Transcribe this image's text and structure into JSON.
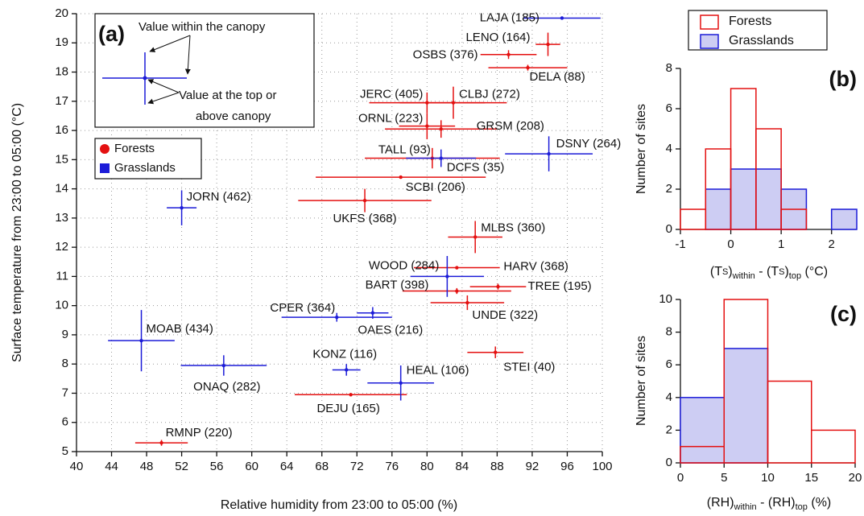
{
  "chart_data": [
    {
      "type": "scatter",
      "title": "(a)",
      "xlabel": "Relative humidity from 23:00 to 05:00 (%)",
      "ylabel": "Surface temperature from 23:00 to 05:00 (°C)",
      "annotations": [
        "Value within the canopy",
        "Value at the top or",
        "above canopy"
      ],
      "xlim": [
        40,
        100
      ],
      "xticks": [
        40,
        44,
        48,
        52,
        56,
        60,
        64,
        68,
        72,
        76,
        80,
        84,
        88,
        92,
        96,
        100
      ],
      "ylim": [
        5,
        20
      ],
      "yticks": [
        5,
        6,
        7,
        8,
        9,
        10,
        11,
        12,
        13,
        14,
        15,
        16,
        17,
        18,
        19,
        20
      ],
      "grid": true,
      "series": [
        {
          "name": "Forests",
          "color": "#e41010",
          "marker": "circle",
          "labels": [
            "LENO (164)",
            "OSBS (376)",
            "DELA (88)",
            "JERC (405)",
            "CLBJ (272)",
            "ORNL (223)",
            "GRSM (208)",
            "TALL (93)",
            "SCBI (206)",
            "UKFS (368)",
            "MLBS (360)",
            "HARV (368)",
            "BART (398)",
            "TREE (195)",
            "UNDE (322)",
            "STEI (40)",
            "DEJU (165)",
            "RMNP (220)"
          ],
          "x": [
            93.8,
            89.3,
            91.5,
            80.0,
            83.0,
            80.0,
            81.6,
            80.6,
            77.0,
            72.9,
            85.5,
            83.4,
            83.4,
            88.1,
            84.6,
            87.8,
            71.3,
            49.7
          ],
          "values": [
            18.95,
            18.6,
            18.15,
            16.95,
            16.95,
            16.15,
            16.05,
            15.05,
            14.4,
            13.6,
            12.35,
            11.3,
            10.5,
            10.65,
            10.1,
            8.4,
            6.95,
            5.3
          ],
          "xerr": [
            1.4,
            3.2,
            4.5,
            6.6,
            6.1,
            3.2,
            6.4,
            7.7,
            9.7,
            7.6,
            3.1,
            4.9,
            6.2,
            3.2,
            4.2,
            3.2,
            6.4,
            3.0
          ],
          "yerr": [
            0.4,
            0.15,
            0.1,
            0.35,
            0.55,
            0.45,
            0.3,
            0.35,
            0.05,
            0.4,
            0.55,
            0.05,
            0.1,
            0.1,
            0.25,
            0.2,
            0.05,
            0.1
          ]
        },
        {
          "name": "Grasslands",
          "color": "#1c1cd8",
          "marker": "square",
          "labels": [
            "LAJA (185)",
            "DSNY (264)",
            "DCFS (35)",
            "JORN (462)",
            "WOOD (284)",
            "CPER (364)",
            "OAES (216)",
            "MOAB (434)",
            "ONAQ (282)",
            "KONZ (116)",
            "HEAL (106)"
          ],
          "x": [
            95.4,
            93.9,
            81.6,
            52.0,
            82.3,
            69.7,
            73.8,
            47.4,
            56.8,
            70.8,
            77.0
          ],
          "values": [
            19.85,
            15.2,
            15.05,
            13.35,
            11.0,
            9.6,
            9.75,
            8.8,
            7.95,
            7.8,
            7.35
          ],
          "xerr": [
            4.4,
            5.0,
            4.0,
            1.7,
            4.2,
            6.3,
            1.8,
            3.8,
            4.9,
            1.6,
            3.8
          ],
          "yerr": [
            0.05,
            0.6,
            0.3,
            0.6,
            0.7,
            0.15,
            0.2,
            1.05,
            0.35,
            0.2,
            0.6
          ]
        }
      ]
    },
    {
      "type": "histogram",
      "title": "(b)",
      "xlabel": [
        "(T",
        "S",
        ")",
        "within",
        " - (T",
        "S",
        ")",
        "top",
        "  (°C)"
      ],
      "ylabel": "Number of sites",
      "bins": [
        -1,
        -0.5,
        0,
        0.5,
        1,
        1.5,
        2,
        2.5
      ],
      "xlim": [
        -1,
        2.5
      ],
      "xticks": [
        -1,
        0,
        1,
        2
      ],
      "ylim": [
        0,
        8
      ],
      "yticks": [
        0,
        2,
        4,
        6,
        8
      ],
      "series": [
        {
          "name": "Grasslands",
          "color": "#1c1cd8",
          "fill": "#cdcdf3",
          "values": [
            0,
            2,
            3,
            3,
            2,
            0,
            1
          ]
        },
        {
          "name": "Forests",
          "color": "#e41010",
          "fill": "none",
          "values": [
            1,
            4,
            7,
            5,
            1,
            0,
            0
          ]
        }
      ]
    },
    {
      "type": "histogram",
      "title": "(c)",
      "xlabel": [
        "(RH)",
        "within",
        " - (RH)",
        "top",
        "  (%)"
      ],
      "ylabel": "Number of sites",
      "bins": [
        0,
        5,
        10,
        15,
        20
      ],
      "xlim": [
        0,
        20
      ],
      "xticks": [
        0,
        5,
        10,
        15,
        20
      ],
      "ylim": [
        0,
        10
      ],
      "yticks": [
        0,
        2,
        4,
        6,
        8,
        10
      ],
      "series": [
        {
          "name": "Grasslands",
          "color": "#1c1cd8",
          "fill": "#cdcdf3",
          "values": [
            4,
            7,
            0,
            0
          ]
        },
        {
          "name": "Forests",
          "color": "#e41010",
          "fill": "none",
          "values": [
            1,
            10,
            5,
            2
          ]
        }
      ]
    }
  ]
}
